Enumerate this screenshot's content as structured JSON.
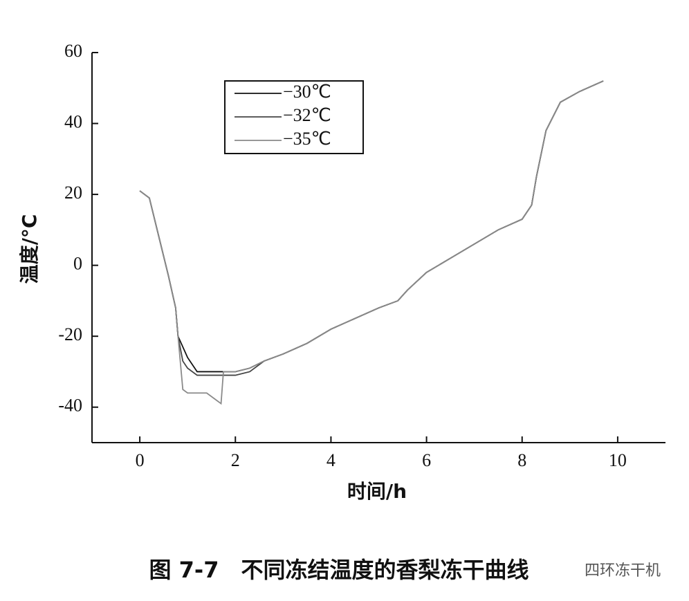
{
  "chart_data": {
    "type": "line",
    "title": "图 7-7　不同冻结温度的香梨冻干曲线",
    "watermark": "四环冻干机",
    "x_label": "时间/h",
    "y_label": "温度/°C",
    "x": [
      0,
      0.2,
      0.4,
      0.6,
      0.75,
      0.8,
      0.9,
      1.0,
      1.2,
      1.4,
      1.6,
      1.7,
      1.75,
      2.0,
      2.3,
      2.6,
      3.0,
      3.5,
      4.0,
      4.5,
      5.0,
      5.4,
      5.6,
      6.0,
      6.5,
      7.0,
      7.5,
      8.0,
      8.2,
      8.3,
      8.5,
      8.8,
      9.2,
      9.7
    ],
    "series": [
      {
        "name": "−30℃",
        "color": "#111111",
        "values": [
          21,
          19,
          8,
          -3,
          -12,
          -20,
          -23,
          -26,
          -30,
          -30,
          -30,
          -30,
          -30,
          -30,
          -29,
          -27,
          -25,
          -22,
          -18,
          -15,
          -12,
          -10,
          -7,
          -2,
          2,
          6,
          10,
          13,
          17,
          25,
          38,
          46,
          49,
          52
        ]
      },
      {
        "name": "−32℃",
        "color": "#444444",
        "values": [
          21,
          19,
          8,
          -3,
          -12,
          -20,
          -27,
          -29,
          -31,
          -31,
          -31,
          -31,
          -31,
          -31,
          -30,
          -27,
          -25,
          -22,
          -18,
          -15,
          -12,
          -10,
          -7,
          -2,
          2,
          6,
          10,
          13,
          17,
          25,
          38,
          46,
          49,
          52
        ]
      },
      {
        "name": "−35℃",
        "color": "#8a8a8a",
        "values": [
          21,
          19,
          8,
          -3,
          -12,
          -20,
          -35,
          -36,
          -36,
          -36,
          -38,
          -39,
          -30,
          -30,
          -29,
          -27,
          -25,
          -22,
          -18,
          -15,
          -12,
          -10,
          -7,
          -2,
          2,
          6,
          10,
          13,
          17,
          25,
          38,
          46,
          49,
          52
        ]
      }
    ],
    "xlim": [
      -1,
      11
    ],
    "xticks": [
      0,
      2,
      4,
      6,
      8,
      10
    ],
    "ylim": [
      -50,
      60
    ],
    "yticks": [
      -40,
      -20,
      0,
      20,
      40,
      60
    ],
    "legend": "upper-left"
  }
}
